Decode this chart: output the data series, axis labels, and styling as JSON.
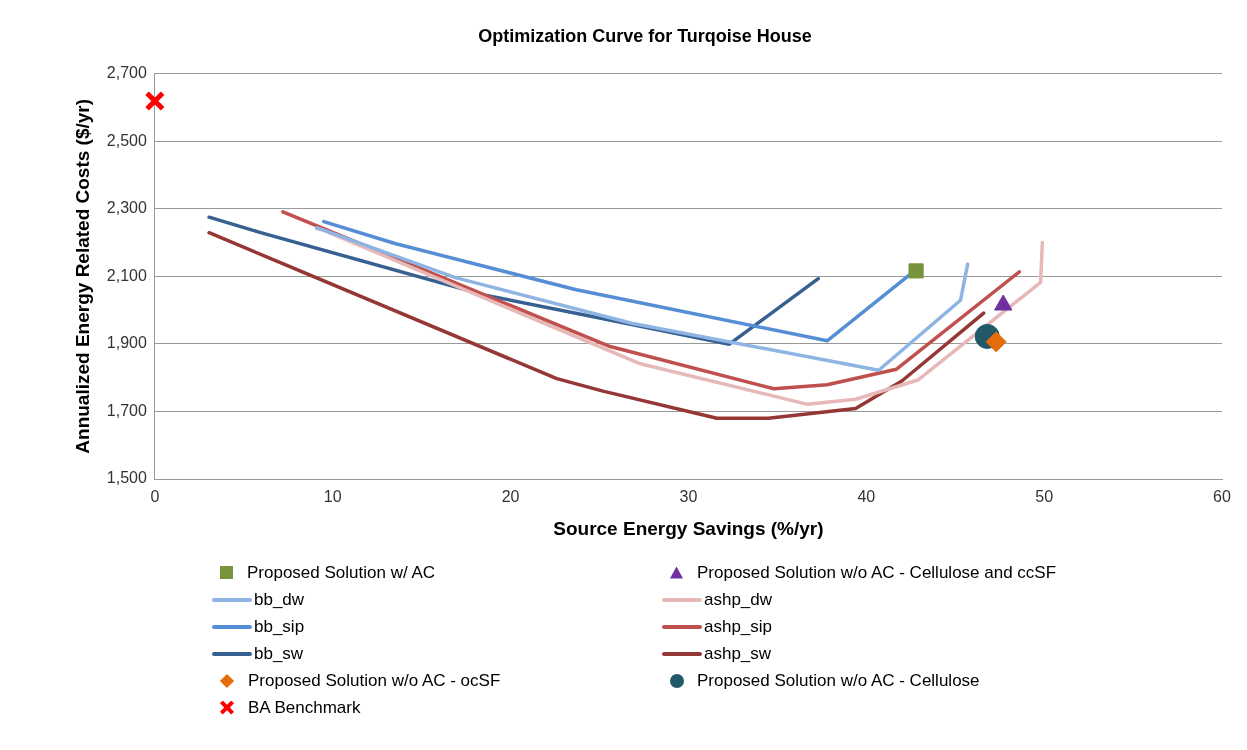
{
  "chart_data": {
    "type": "scatter",
    "title": "Optimization Curve for Turqoise House",
    "xlabel": "Source Energy Savings (%/yr)",
    "ylabel": "Annualized Energy Related Costs ($/yr)",
    "xlim": [
      0,
      60
    ],
    "xticks": [
      0,
      10,
      20,
      30,
      40,
      50,
      60
    ],
    "ylim": [
      1500,
      2700
    ],
    "yticks": [
      {
        "value": 1500,
        "label": "1,500"
      },
      {
        "value": 1700,
        "label": "1,700"
      },
      {
        "value": 1900,
        "label": "1,900"
      },
      {
        "value": 2100,
        "label": "2,100"
      },
      {
        "value": 2300,
        "label": "2,300"
      },
      {
        "value": 2500,
        "label": "2,500"
      },
      {
        "value": 2700,
        "label": "2,700"
      }
    ],
    "grid": "y",
    "legend": "bottom",
    "series": [
      {
        "name": "Proposed Solution w/ AC",
        "type": "scatter",
        "marker": "square",
        "color": "#77933c",
        "x": [
          42.8
        ],
        "values": [
          2116
        ]
      },
      {
        "name": "Proposed Solution w/o AC - Cellulose and ccSF",
        "type": "scatter",
        "marker": "triangle",
        "color": "#7030a0",
        "x": [
          47.7
        ],
        "values": [
          2015
        ]
      },
      {
        "name": "bb_dw",
        "type": "line",
        "marker": "none",
        "color": "#8db4e2",
        "x": [
          9.1,
          16.9,
          26.8,
          40.7,
          45.3,
          45.7
        ],
        "values": [
          2244,
          2096,
          1961,
          1822,
          2029,
          2136
        ]
      },
      {
        "name": "ashp_dw",
        "type": "line",
        "marker": "none",
        "color": "#e6b9b8",
        "x": [
          9.1,
          9.5,
          27.3,
          36.7,
          39.4,
          42.9,
          49.8,
          49.9
        ],
        "values": [
          2241,
          2236,
          1841,
          1721,
          1736,
          1793,
          2082,
          2200
        ]
      },
      {
        "name": "bb_sip",
        "type": "line",
        "marker": "none",
        "color": "#558ed5",
        "x": [
          9.5,
          13.5,
          23.7,
          37.8,
          42.5
        ],
        "values": [
          2262,
          2197,
          2060,
          1909,
          2107
        ]
      },
      {
        "name": "ashp_sip",
        "type": "line",
        "marker": "none",
        "color": "#c0504d",
        "x": [
          7.2,
          25.6,
          34.8,
          37.8,
          41.7,
          48.6
        ],
        "values": [
          2291,
          1892,
          1767,
          1779,
          1825,
          2113
        ]
      },
      {
        "name": "bb_sw",
        "type": "line",
        "marker": "none",
        "color": "#376092",
        "x": [
          3.05,
          5.9,
          18.5,
          24.8,
          32.3,
          37.3
        ],
        "values": [
          2275,
          2230,
          2045,
          1979,
          1899,
          2093
        ]
      },
      {
        "name": "ashp_sw",
        "type": "line",
        "marker": "none",
        "color": "#953735",
        "x": [
          3.05,
          22.6,
          25.2,
          31.6,
          34.5,
          39.4,
          42.0,
          46.6
        ],
        "values": [
          2229,
          1797,
          1760,
          1680,
          1680,
          1709,
          1790,
          1991
        ]
      },
      {
        "name": "Proposed Solution w/o AC - ocSF",
        "type": "scatter",
        "marker": "diamond",
        "color": "#e46c0a",
        "x": [
          47.3
        ],
        "values": [
          1906
        ]
      },
      {
        "name": "Proposed Solution w/o AC - Cellulose",
        "type": "scatter",
        "marker": "circle",
        "color": "#215968",
        "x": [
          46.8
        ],
        "values": [
          1922
        ]
      },
      {
        "name": "BA Benchmark",
        "type": "scatter",
        "marker": "cross",
        "color": "#ff0000",
        "x": [
          0
        ],
        "values": [
          2619
        ]
      }
    ]
  }
}
